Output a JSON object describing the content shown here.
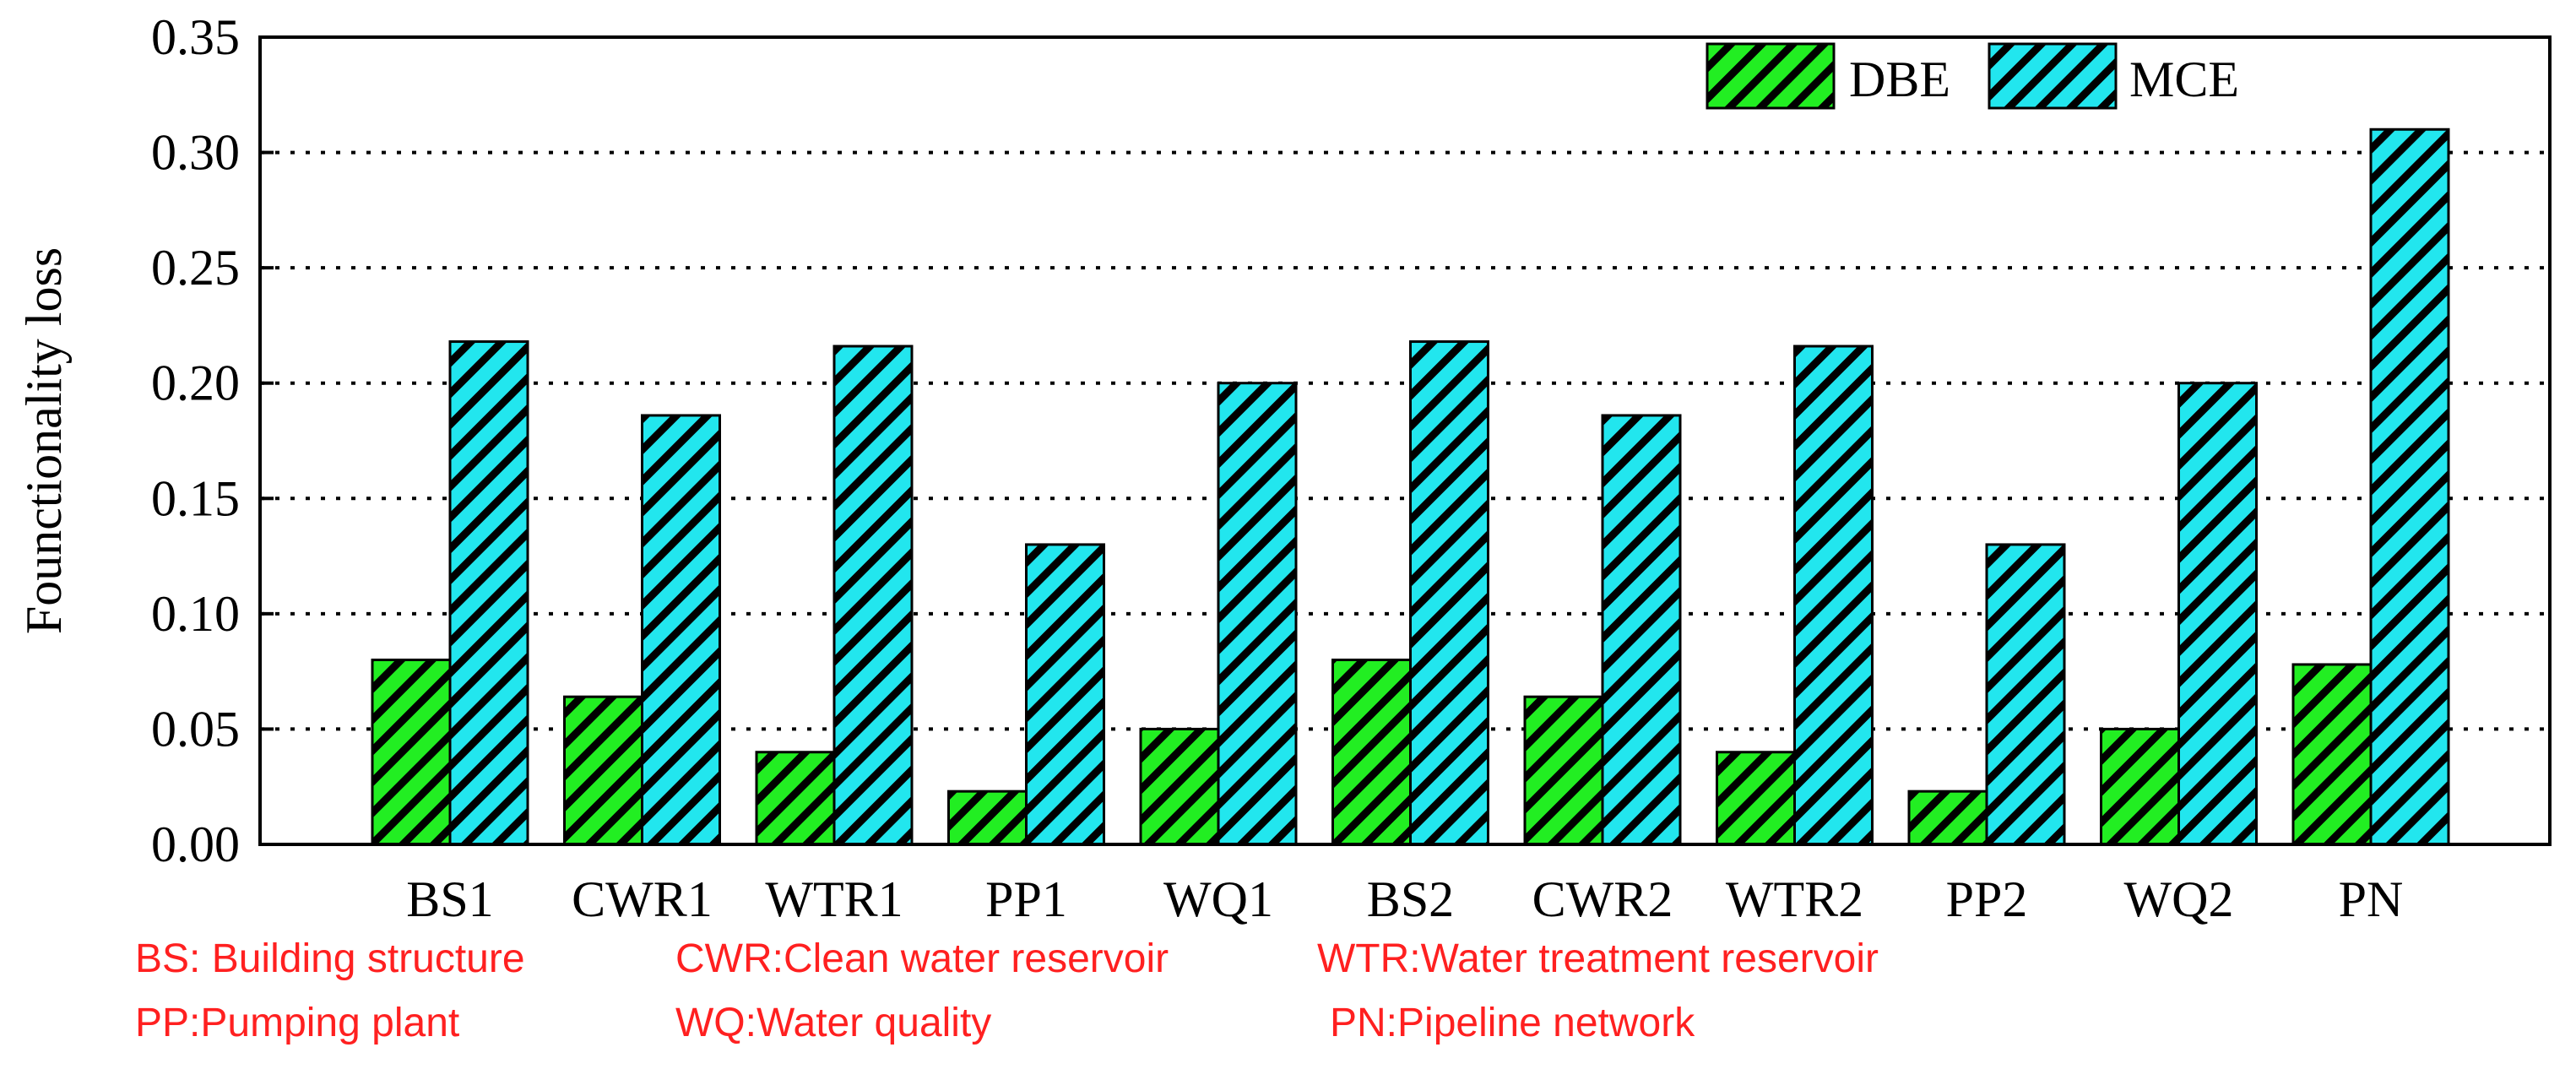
{
  "chart_data": {
    "type": "bar",
    "title": "",
    "xlabel": "",
    "ylabel": "Founctionality loss",
    "ylim": [
      0,
      0.35
    ],
    "yticks": [
      "0.00",
      "0.05",
      "0.10",
      "0.15",
      "0.20",
      "0.25",
      "0.30",
      "0.35"
    ],
    "grid": "horizontal dotted",
    "legend_position": "top-right",
    "categories": [
      "BS1",
      "CWR1",
      "WTR1",
      "PP1",
      "WQ1",
      "BS2",
      "CWR2",
      "WTR2",
      "PP2",
      "WQ2",
      "PN"
    ],
    "series": [
      {
        "name": "DBE",
        "color": "#22ee22",
        "values": [
          0.08,
          0.064,
          0.04,
          0.023,
          0.05,
          0.08,
          0.064,
          0.04,
          0.023,
          0.05,
          0.078
        ]
      },
      {
        "name": "MCE",
        "color": "#22e6ee",
        "values": [
          0.218,
          0.186,
          0.216,
          0.13,
          0.2,
          0.218,
          0.186,
          0.216,
          0.13,
          0.2,
          0.31
        ]
      }
    ]
  },
  "abbreviations": [
    "BS: Building structure",
    "CWR:Clean water reservoir",
    "WTR:Water treatment reservoir",
    "PP:Pumping plant",
    "WQ:Water quality",
    "PN:Pipeline network"
  ]
}
